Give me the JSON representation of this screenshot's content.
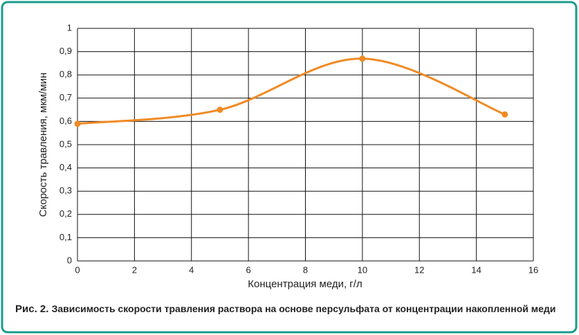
{
  "chart_data": {
    "type": "line",
    "y_label": "Скорость травления, мкм/мин",
    "x_label": "Концентрация меди, г/л",
    "figure_label": "Рис. 2.",
    "caption": "Зависимость скорости травления раствора на основе персульфата от концентрации накопленной меди",
    "x": [
      0,
      5,
      10,
      15
    ],
    "series": [
      {
        "name": "Скорость травления",
        "color": "#f08a24",
        "values": [
          0.59,
          0.65,
          0.87,
          0.63
        ]
      }
    ],
    "xlim": [
      0,
      16
    ],
    "xticks": [
      0,
      2,
      4,
      6,
      8,
      10,
      12,
      14,
      16
    ],
    "ylim": [
      0,
      1
    ],
    "yticks": [
      0,
      {
        "value": 0.1,
        "label": "0,1"
      },
      {
        "value": 0.2,
        "label": "0,2"
      },
      {
        "value": 0.3,
        "label": "0,3"
      },
      {
        "value": 0.4,
        "label": "0,4"
      },
      {
        "value": 0.5,
        "label": "0,5"
      },
      {
        "value": 0.6,
        "label": "0,6"
      },
      {
        "value": 0.7,
        "label": "0,7"
      },
      {
        "value": 0.8,
        "label": "0,8"
      },
      {
        "value": 0.9,
        "label": "0,9"
      },
      1
    ],
    "grid": true,
    "smooth": true
  }
}
